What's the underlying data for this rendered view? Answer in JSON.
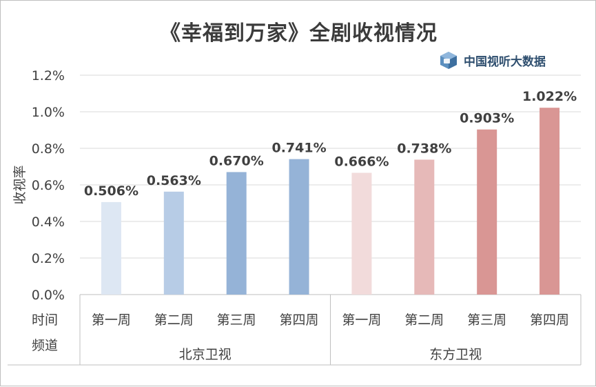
{
  "chart_data": {
    "type": "bar",
    "title": "《幸福到万家》全剧收视情况",
    "ylabel": "收视率",
    "ylim": [
      0,
      1.2
    ],
    "yticks": [
      "0.0%",
      "0.2%",
      "0.4%",
      "0.6%",
      "0.8%",
      "1.0%",
      "1.2%"
    ],
    "grid": true,
    "x_row_labels": [
      "时间",
      "频道"
    ],
    "groups": [
      {
        "name": "北京卫视",
        "categories": [
          "第一周",
          "第二周",
          "第三周",
          "第四周"
        ],
        "values": [
          0.506,
          0.563,
          0.67,
          0.741
        ],
        "labels": [
          "0.506%",
          "0.563%",
          "0.670%",
          "0.741%"
        ],
        "colors": [
          "#dde7f3",
          "#b7cce6",
          "#95b3d7",
          "#95b3d7"
        ]
      },
      {
        "name": "东方卫视",
        "categories": [
          "第一周",
          "第二周",
          "第三周",
          "第四周"
        ],
        "values": [
          0.666,
          0.738,
          0.903,
          1.022
        ],
        "labels": [
          "0.666%",
          "0.738%",
          "0.903%",
          "1.022%"
        ],
        "colors": [
          "#f2dbdb",
          "#e6b9b8",
          "#d99694",
          "#d99694"
        ]
      }
    ]
  },
  "watermark": {
    "text": "中国视听大数据",
    "icon": "cube-logo-icon"
  }
}
